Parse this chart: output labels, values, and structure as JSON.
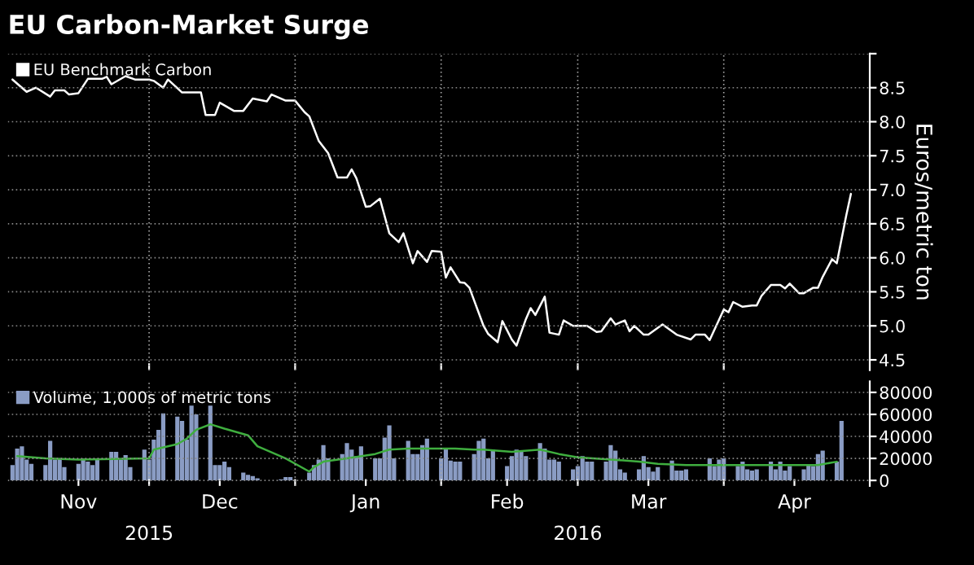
{
  "chart_data": [
    {
      "type": "line",
      "title": "EU Carbon-Market Surge",
      "ylabel": "Euros/metric ton",
      "x": [
        "2015-11-02",
        "2015-11-05",
        "2015-11-07",
        "2015-11-10",
        "2015-11-11",
        "2015-11-13",
        "2015-11-14",
        "2015-11-16",
        "2015-11-18",
        "2015-11-21",
        "2015-11-22",
        "2015-11-23",
        "2015-11-26",
        "2015-11-28",
        "2015-12-01",
        "2015-12-02",
        "2015-12-04",
        "2015-12-05",
        "2015-12-08",
        "2015-12-12",
        "2015-12-13",
        "2015-12-15",
        "2015-12-16",
        "2015-12-19",
        "2015-12-21",
        "2015-12-23",
        "2015-12-26",
        "2015-12-27",
        "2015-12-30",
        "2016-01-01",
        "2016-01-03",
        "2016-01-04",
        "2016-01-06",
        "2016-01-08",
        "2016-01-10",
        "2016-01-12",
        "2016-01-13",
        "2016-01-14",
        "2016-01-16",
        "2016-01-17",
        "2016-01-19",
        "2016-01-21",
        "2016-01-23",
        "2016-01-24",
        "2016-01-26",
        "2016-01-27",
        "2016-01-29",
        "2016-01-30",
        "2016-02-01",
        "2016-02-02",
        "2016-02-03",
        "2016-02-05",
        "2016-02-06",
        "2016-02-07",
        "2016-02-10",
        "2016-02-11",
        "2016-02-13",
        "2016-02-14",
        "2016-02-16",
        "2016-02-17",
        "2016-02-19",
        "2016-02-20",
        "2016-02-21",
        "2016-02-23",
        "2016-02-24",
        "2016-02-26",
        "2016-02-27",
        "2016-02-29",
        "2016-03-03",
        "2016-03-05",
        "2016-03-06",
        "2016-03-08",
        "2016-03-09",
        "2016-03-11",
        "2016-03-12",
        "2016-03-13",
        "2016-03-15",
        "2016-03-16",
        "2016-03-19",
        "2016-03-22",
        "2016-03-25",
        "2016-03-26",
        "2016-03-28",
        "2016-03-29",
        "2016-04-01",
        "2016-04-02",
        "2016-04-03",
        "2016-04-05",
        "2016-04-07",
        "2016-04-08",
        "2016-04-09",
        "2016-04-11",
        "2016-04-13",
        "2016-04-14",
        "2016-04-15",
        "2016-04-17",
        "2016-04-18",
        "2016-04-20",
        "2016-04-21",
        "2016-04-22",
        "2016-04-24",
        "2016-04-25",
        "2016-04-27",
        "2016-04-28"
      ],
      "series": [
        {
          "name": "EU Benchmark Carbon",
          "color": "#ffffff",
          "values": [
            8.62,
            8.44,
            8.5,
            8.37,
            8.46,
            8.46,
            8.4,
            8.42,
            8.63,
            8.63,
            8.66,
            8.55,
            8.67,
            8.62,
            8.62,
            8.6,
            8.5,
            8.62,
            8.43,
            8.43,
            8.1,
            8.1,
            8.28,
            8.16,
            8.16,
            8.34,
            8.3,
            8.4,
            8.31,
            8.31,
            8.14,
            8.08,
            7.72,
            7.54,
            7.18,
            7.18,
            7.3,
            7.17,
            6.75,
            6.76,
            6.87,
            6.36,
            6.23,
            6.36,
            5.92,
            6.1,
            5.94,
            6.1,
            6.09,
            5.71,
            5.86,
            5.64,
            5.63,
            5.56,
            5.0,
            4.88,
            4.76,
            5.07,
            4.8,
            4.71,
            5.1,
            5.26,
            5.16,
            5.43,
            4.9,
            4.87,
            5.08,
            5.0,
            5.0,
            4.91,
            4.92,
            5.11,
            5.02,
            5.08,
            4.92,
            5.0,
            4.87,
            4.87,
            5.02,
            4.87,
            4.8,
            4.87,
            4.87,
            4.79,
            5.24,
            5.2,
            5.35,
            5.28,
            5.3,
            5.3,
            5.44,
            5.6,
            5.6,
            5.55,
            5.62,
            5.48,
            5.48,
            5.56,
            5.56,
            5.72,
            5.98,
            5.92,
            6.62,
            6.94
          ]
        }
      ],
      "xlim": [
        "2015-11-01",
        "2016-05-02"
      ],
      "xticks": [
        {
          "value": "2015-12-01",
          "label": null
        },
        {
          "value": "2016-01-01",
          "label": null
        },
        {
          "value": "2016-02-01",
          "label": null
        },
        {
          "value": "2016-03-01",
          "label": null
        },
        {
          "value": "2016-04-01",
          "label": null
        }
      ],
      "ylim": [
        4.35,
        9.0
      ],
      "yticks": [
        4.5,
        {
          "value": 5,
          "label": "5.0"
        },
        5.5,
        {
          "value": 6,
          "label": "6.0"
        },
        6.5,
        {
          "value": 7,
          "label": "7.0"
        },
        7.5,
        {
          "value": 8,
          "label": "8.0"
        },
        8.5,
        {
          "value": 9,
          "label": null
        }
      ],
      "tick_labels": "y",
      "grid": true,
      "legend": "top left"
    },
    {
      "type": "bar",
      "x": [
        "2015-11-02",
        "2015-11-03",
        "2015-11-04",
        "2015-11-05",
        "2015-11-06",
        "2015-11-09",
        "2015-11-10",
        "2015-11-11",
        "2015-11-12",
        "2015-11-13",
        "2015-11-16",
        "2015-11-17",
        "2015-11-18",
        "2015-11-19",
        "2015-11-20",
        "2015-11-23",
        "2015-11-24",
        "2015-11-25",
        "2015-11-26",
        "2015-11-27",
        "2015-11-30",
        "2015-12-01",
        "2015-12-02",
        "2015-12-03",
        "2015-12-04",
        "2015-12-07",
        "2015-12-08",
        "2015-12-09",
        "2015-12-10",
        "2015-12-11",
        "2015-12-14",
        "2015-12-15",
        "2015-12-16",
        "2015-12-17",
        "2015-12-18",
        "2015-12-21",
        "2015-12-22",
        "2015-12-23",
        "2015-12-24",
        "2015-12-29",
        "2015-12-30",
        "2015-12-31",
        "2016-01-04",
        "2016-01-05",
        "2016-01-06",
        "2016-01-07",
        "2016-01-08",
        "2016-01-11",
        "2016-01-12",
        "2016-01-13",
        "2016-01-14",
        "2016-01-15",
        "2016-01-18",
        "2016-01-19",
        "2016-01-20",
        "2016-01-21",
        "2016-01-22",
        "2016-01-25",
        "2016-01-26",
        "2016-01-27",
        "2016-01-28",
        "2016-01-29",
        "2016-02-01",
        "2016-02-02",
        "2016-02-03",
        "2016-02-04",
        "2016-02-05",
        "2016-02-08",
        "2016-02-09",
        "2016-02-10",
        "2016-02-11",
        "2016-02-12",
        "2016-02-15",
        "2016-02-16",
        "2016-02-17",
        "2016-02-18",
        "2016-02-19",
        "2016-02-22",
        "2016-02-23",
        "2016-02-24",
        "2016-02-25",
        "2016-02-26",
        "2016-02-29",
        "2016-03-01",
        "2016-03-02",
        "2016-03-03",
        "2016-03-04",
        "2016-03-07",
        "2016-03-08",
        "2016-03-09",
        "2016-03-10",
        "2016-03-11",
        "2016-03-14",
        "2016-03-15",
        "2016-03-16",
        "2016-03-17",
        "2016-03-18",
        "2016-03-21",
        "2016-03-22",
        "2016-03-23",
        "2016-03-24",
        "2016-03-29",
        "2016-03-30",
        "2016-03-31",
        "2016-04-01",
        "2016-04-04",
        "2016-04-05",
        "2016-04-06",
        "2016-04-07",
        "2016-04-08",
        "2016-04-11",
        "2016-04-12",
        "2016-04-13",
        "2016-04-14",
        "2016-04-15",
        "2016-04-18",
        "2016-04-19",
        "2016-04-20",
        "2016-04-21",
        "2016-04-22",
        "2016-04-25",
        "2016-04-26"
      ],
      "series": [
        {
          "name": "Volume, 1,000s of metric tons",
          "color": "#8a9cc4",
          "values": [
            14000,
            29000,
            31000,
            19000,
            15000,
            14000,
            36000,
            19000,
            20000,
            12000,
            15000,
            20000,
            17000,
            14000,
            19000,
            26000,
            26000,
            19000,
            23000,
            12000,
            28000,
            19000,
            37000,
            46000,
            61000,
            58000,
            54000,
            37000,
            68000,
            60000,
            68000,
            14000,
            14000,
            17000,
            12000,
            7000,
            5000,
            4000,
            2000,
            1000,
            3000,
            3000,
            7000,
            14000,
            19000,
            32000,
            20000,
            24000,
            34000,
            28000,
            22000,
            31000,
            20000,
            20000,
            39000,
            50000,
            20000,
            36000,
            24000,
            24000,
            32000,
            38000,
            20000,
            29000,
            18000,
            17000,
            17000,
            24000,
            36000,
            38000,
            20000,
            28000,
            13000,
            22000,
            28000,
            26000,
            22000,
            34000,
            29000,
            19000,
            19000,
            17000,
            10000,
            13000,
            22000,
            17000,
            17000,
            17000,
            32000,
            27000,
            10000,
            7000,
            10000,
            22000,
            12000,
            8000,
            12000,
            18000,
            9000,
            9000,
            10000,
            20000,
            13000,
            19000,
            20000,
            13000,
            17000,
            10000,
            9000,
            10000,
            17000,
            10000,
            17000,
            9000,
            13000,
            10000,
            14000,
            13000,
            24000,
            27000,
            17000,
            54000
          ]
        },
        {
          "type": "line",
          "color": "#3fae3f",
          "x": [
            "2015-11-03",
            "2015-11-09",
            "2015-11-16",
            "2015-12-01",
            "2015-12-02",
            "2015-12-07",
            "2015-12-09",
            "2015-12-11",
            "2015-12-14",
            "2015-12-17",
            "2015-12-22",
            "2015-12-24",
            "2015-12-30",
            "2016-01-04",
            "2016-01-05",
            "2016-01-07",
            "2016-01-12",
            "2016-01-18",
            "2016-01-21",
            "2016-01-25",
            "2016-01-28",
            "2016-02-04",
            "2016-02-08",
            "2016-02-10",
            "2016-02-16",
            "2016-02-22",
            "2016-02-26",
            "2016-03-01",
            "2016-03-08",
            "2016-03-14",
            "2016-03-18",
            "2016-03-24",
            "2016-03-31",
            "2016-04-11",
            "2016-04-21",
            "2016-04-25"
          ],
          "values": [
            22000,
            20000,
            19000,
            20000,
            28000,
            33000,
            38000,
            46000,
            51000,
            47000,
            41000,
            31000,
            20000,
            8000,
            12000,
            17000,
            20000,
            24000,
            28000,
            29000,
            29000,
            29000,
            28000,
            28000,
            26000,
            28000,
            24000,
            21000,
            19000,
            17000,
            15000,
            14000,
            14000,
            14000,
            14000,
            17000
          ]
        }
      ],
      "xlim": [
        "2015-11-01",
        "2016-05-02"
      ],
      "xticks": [
        {
          "value": "2015-11-16",
          "label": "Nov"
        },
        {
          "value": "2015-12-01",
          "label": null
        },
        {
          "value": "2015-12-16",
          "label": "Dec"
        },
        {
          "value": "2016-01-01",
          "label": null
        },
        {
          "value": "2016-01-16",
          "label": "Jan"
        },
        {
          "value": "2016-02-01",
          "label": null
        },
        {
          "value": "2016-02-15",
          "label": "Feb"
        },
        {
          "value": "2016-03-01",
          "label": null
        },
        {
          "value": "2016-03-16",
          "label": "Mar"
        },
        {
          "value": "2016-04-01",
          "label": null
        },
        {
          "value": "2016-04-16",
          "label": "Apr"
        }
      ],
      "x2lim": [
        "2015-11-01",
        "2016-05-02"
      ],
      "x2ticks": [
        {
          "value": "2015-12-01",
          "label": "2015"
        },
        {
          "value": "2016-03-01",
          "label": "2016"
        }
      ],
      "ylim": [
        -5000,
        90000
      ],
      "yticks": [
        0,
        20000,
        40000,
        60000,
        80000
      ],
      "grid": true,
      "legend": "top left"
    }
  ]
}
